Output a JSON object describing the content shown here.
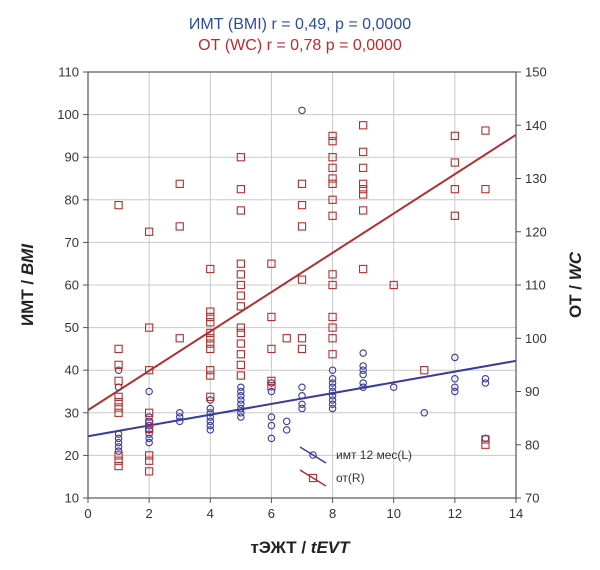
{
  "chart_data": {
    "type": "scatter",
    "subtitles": {
      "bmi": "ИМТ (BMI) r = 0,49, p = 0,0000",
      "wc": "ОТ (WC) r = 0,78 p = 0,0000"
    },
    "xlabel": {
      "main": "тЭЖТ / ",
      "italic": "tEVT"
    },
    "ylabel_left": {
      "main": "ИМТ / ",
      "italic": "BMI"
    },
    "ylabel_right": {
      "main": "ОТ / ",
      "italic": "WC"
    },
    "xlim": [
      0,
      14
    ],
    "ylim_left": [
      10,
      110
    ],
    "ylim_right": [
      70,
      150
    ],
    "x_ticks": [
      0,
      2,
      4,
      6,
      8,
      10,
      12,
      14
    ],
    "y_left_ticks": [
      10,
      20,
      30,
      40,
      50,
      60,
      70,
      80,
      90,
      100,
      110
    ],
    "y_right_ticks": [
      70,
      80,
      90,
      100,
      110,
      120,
      130,
      140,
      150
    ],
    "grid": true,
    "legend_position": "bottom-right",
    "colors": {
      "bmi": "#3a3aa0",
      "wc": "#b03030",
      "subtitle_bmi": "#2b4da0",
      "subtitle_wc": "#c0282a",
      "grid": "#c8c8c8",
      "axis": "#555555"
    },
    "series": [
      {
        "name": "имт 12 мес(L)",
        "axis": "left",
        "marker": "circle",
        "points": [
          [
            1,
            40
          ],
          [
            1,
            36
          ],
          [
            1,
            25
          ],
          [
            1,
            24
          ],
          [
            1,
            23
          ],
          [
            1,
            22
          ],
          [
            1,
            21
          ],
          [
            2,
            35
          ],
          [
            2,
            29
          ],
          [
            2,
            28
          ],
          [
            2,
            27
          ],
          [
            2,
            26
          ],
          [
            2,
            25
          ],
          [
            2,
            24
          ],
          [
            2,
            23
          ],
          [
            3,
            30
          ],
          [
            3,
            29
          ],
          [
            3,
            28
          ],
          [
            4,
            33
          ],
          [
            4,
            31
          ],
          [
            4,
            30
          ],
          [
            4,
            29
          ],
          [
            4,
            28
          ],
          [
            4,
            27
          ],
          [
            4,
            26
          ],
          [
            5,
            36
          ],
          [
            5,
            35
          ],
          [
            5,
            34
          ],
          [
            5,
            33
          ],
          [
            5,
            32
          ],
          [
            5,
            31
          ],
          [
            5,
            30
          ],
          [
            5,
            29
          ],
          [
            6,
            37
          ],
          [
            6,
            35
          ],
          [
            6,
            29
          ],
          [
            6,
            27
          ],
          [
            6,
            24
          ],
          [
            6.5,
            28
          ],
          [
            6.5,
            26
          ],
          [
            7,
            101
          ],
          [
            7,
            36
          ],
          [
            7,
            34
          ],
          [
            7,
            32
          ],
          [
            7,
            31
          ],
          [
            8,
            40
          ],
          [
            8,
            38
          ],
          [
            8,
            37
          ],
          [
            8,
            36
          ],
          [
            8,
            35
          ],
          [
            8,
            34
          ],
          [
            8,
            33
          ],
          [
            8,
            32
          ],
          [
            8,
            31
          ],
          [
            9,
            44
          ],
          [
            9,
            41
          ],
          [
            9,
            40
          ],
          [
            9,
            39
          ],
          [
            9,
            37
          ],
          [
            9,
            36
          ],
          [
            10,
            36
          ],
          [
            11,
            30
          ],
          [
            12,
            43
          ],
          [
            12,
            38
          ],
          [
            12,
            36
          ],
          [
            12,
            35
          ],
          [
            13,
            38
          ],
          [
            13,
            37
          ],
          [
            13,
            24
          ]
        ]
      },
      {
        "name": "от(R)",
        "axis": "right",
        "marker": "square",
        "points": [
          [
            1,
            125
          ],
          [
            1,
            98
          ],
          [
            1,
            95
          ],
          [
            1,
            92
          ],
          [
            1,
            89
          ],
          [
            1,
            88
          ],
          [
            1,
            87
          ],
          [
            1,
            86
          ],
          [
            1,
            78
          ],
          [
            1,
            77
          ],
          [
            1,
            76
          ],
          [
            2,
            120
          ],
          [
            2,
            102
          ],
          [
            2,
            94
          ],
          [
            2,
            86
          ],
          [
            2,
            84
          ],
          [
            2,
            83
          ],
          [
            2,
            78
          ],
          [
            2,
            77
          ],
          [
            2,
            75
          ],
          [
            3,
            129
          ],
          [
            3,
            121
          ],
          [
            3,
            100
          ],
          [
            4,
            113
          ],
          [
            4,
            105
          ],
          [
            4,
            104
          ],
          [
            4,
            103
          ],
          [
            4,
            101
          ],
          [
            4,
            100
          ],
          [
            4,
            99
          ],
          [
            4,
            98
          ],
          [
            4,
            94
          ],
          [
            4,
            93
          ],
          [
            4,
            89
          ],
          [
            5,
            134
          ],
          [
            5,
            128
          ],
          [
            5,
            124
          ],
          [
            5,
            114
          ],
          [
            5,
            112
          ],
          [
            5,
            110
          ],
          [
            5,
            108
          ],
          [
            5,
            106
          ],
          [
            5,
            102
          ],
          [
            5,
            101
          ],
          [
            5,
            99
          ],
          [
            5,
            97
          ],
          [
            5,
            95
          ],
          [
            5,
            93
          ],
          [
            6,
            114
          ],
          [
            6,
            104
          ],
          [
            6,
            98
          ],
          [
            6,
            92
          ],
          [
            6,
            91
          ],
          [
            6.5,
            100
          ],
          [
            7,
            129
          ],
          [
            7,
            125
          ],
          [
            7,
            121
          ],
          [
            7,
            111
          ],
          [
            7,
            100
          ],
          [
            7,
            98
          ],
          [
            8,
            138
          ],
          [
            8,
            137
          ],
          [
            8,
            134
          ],
          [
            8,
            132
          ],
          [
            8,
            130
          ],
          [
            8,
            129
          ],
          [
            8,
            126
          ],
          [
            8,
            123
          ],
          [
            8,
            112
          ],
          [
            8,
            110
          ],
          [
            8,
            104
          ],
          [
            8,
            102
          ],
          [
            8,
            100
          ],
          [
            8,
            97
          ],
          [
            9,
            140
          ],
          [
            9,
            135
          ],
          [
            9,
            132
          ],
          [
            9,
            129
          ],
          [
            9,
            128
          ],
          [
            9,
            127
          ],
          [
            9,
            124
          ],
          [
            9,
            113
          ],
          [
            10,
            110
          ],
          [
            11,
            94
          ],
          [
            12,
            138
          ],
          [
            12,
            133
          ],
          [
            12,
            128
          ],
          [
            12,
            123
          ],
          [
            13,
            139
          ],
          [
            13,
            128
          ],
          [
            13,
            80
          ],
          [
            13,
            81
          ]
        ]
      }
    ],
    "trendlines": [
      {
        "name": "имт 12 мес(L)",
        "axis": "left",
        "from": [
          0,
          24.5
        ],
        "to": [
          14,
          42.2
        ]
      },
      {
        "name": "от(R)",
        "axis": "right",
        "from": [
          0,
          86.5
        ],
        "to": [
          14,
          138.2
        ]
      }
    ]
  }
}
